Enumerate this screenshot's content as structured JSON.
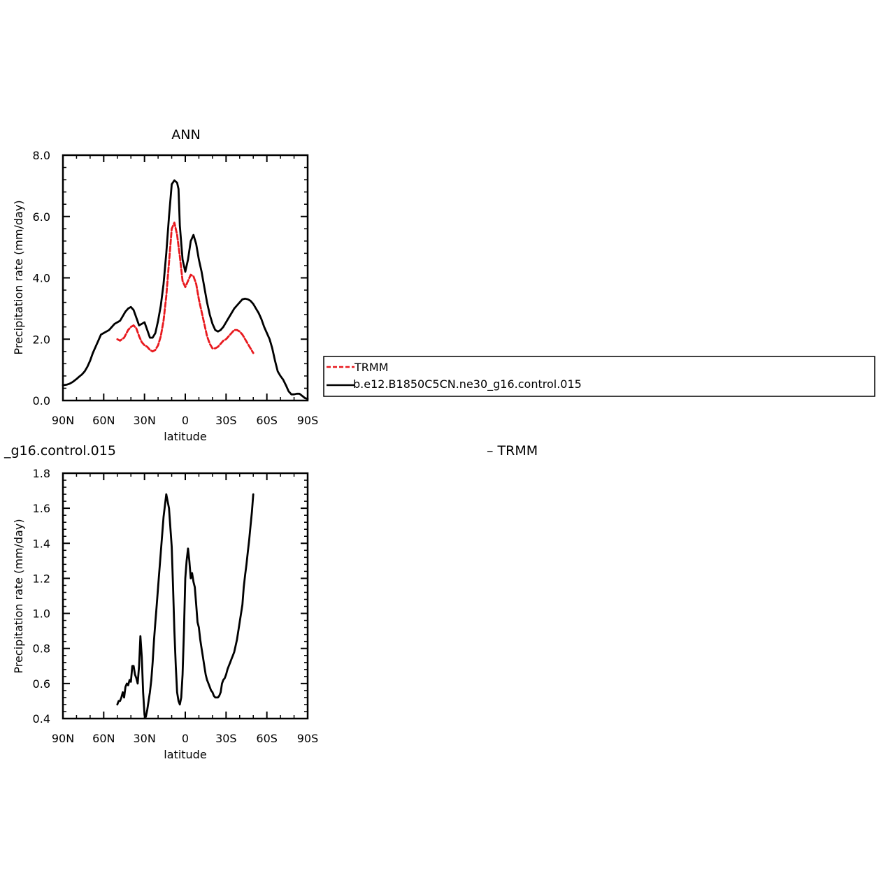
{
  "chart_data": [
    {
      "type": "line",
      "title": "ANN",
      "xlabel": "latitude",
      "ylabel": "Precipitation rate (mm/day)",
      "xlim": [
        90,
        -90
      ],
      "ylim": [
        0.0,
        8.0
      ],
      "xticks": [
        90,
        60,
        30,
        0,
        -30,
        -60,
        -90
      ],
      "xtick_labels": [
        "90N",
        "60N",
        "30N",
        "0",
        "30S",
        "60S",
        "90S"
      ],
      "yticks": [
        0,
        2,
        4,
        6,
        8
      ],
      "ytick_labels": [
        "0.0",
        "2.0",
        "4.0",
        "6.0",
        "8.0"
      ],
      "grid": false,
      "legend_position": "right",
      "series": [
        {
          "name": "TRMM",
          "color": "#e8191e",
          "dash": "dashed",
          "x": [
            50,
            48,
            45,
            42,
            40,
            38,
            36,
            34,
            32,
            30,
            28,
            26,
            24,
            22,
            20,
            18,
            16,
            14,
            12,
            10,
            8,
            6,
            4,
            2,
            0,
            -2,
            -4,
            -6,
            -8,
            -10,
            -12,
            -14,
            -16,
            -18,
            -20,
            -22,
            -24,
            -26,
            -28,
            -30,
            -32,
            -34,
            -36,
            -38,
            -40,
            -42,
            -44,
            -46,
            -48,
            -50
          ],
          "y": [
            2.0,
            1.95,
            2.05,
            2.3,
            2.4,
            2.45,
            2.35,
            2.1,
            1.9,
            1.8,
            1.75,
            1.65,
            1.6,
            1.65,
            1.8,
            2.1,
            2.6,
            3.4,
            4.5,
            5.6,
            5.8,
            5.4,
            4.7,
            3.9,
            3.7,
            3.9,
            4.1,
            4.05,
            3.8,
            3.3,
            2.9,
            2.5,
            2.1,
            1.85,
            1.7,
            1.7,
            1.75,
            1.85,
            1.95,
            2.0,
            2.1,
            2.2,
            2.3,
            2.3,
            2.25,
            2.15,
            2.0,
            1.85,
            1.7,
            1.55
          ]
        },
        {
          "name": "b.e12.B1850C5CN.ne30_g16.control.015",
          "color": "#000000",
          "dash": "solid",
          "x": [
            90,
            87,
            85,
            83,
            80,
            78,
            76,
            74,
            72,
            70,
            68,
            66,
            64,
            62,
            60,
            58,
            56,
            54,
            52,
            50,
            48,
            46,
            44,
            42,
            40,
            38,
            36,
            34,
            32,
            30,
            28,
            26,
            24,
            22,
            20,
            18,
            16,
            14,
            12,
            10,
            8,
            6,
            5,
            4,
            2,
            0,
            -2,
            -4,
            -6,
            -8,
            -10,
            -12,
            -14,
            -16,
            -18,
            -20,
            -22,
            -24,
            -26,
            -28,
            -30,
            -32,
            -34,
            -36,
            -38,
            -40,
            -42,
            -44,
            -46,
            -48,
            -50,
            -52,
            -54,
            -56,
            -58,
            -60,
            -62,
            -64,
            -66,
            -68,
            -70,
            -72,
            -74,
            -76,
            -78,
            -80,
            -82,
            -84,
            -86,
            -88,
            -90
          ],
          "y": [
            0.5,
            0.52,
            0.55,
            0.6,
            0.7,
            0.78,
            0.85,
            0.95,
            1.1,
            1.3,
            1.55,
            1.75,
            1.95,
            2.15,
            2.2,
            2.25,
            2.3,
            2.4,
            2.5,
            2.55,
            2.6,
            2.75,
            2.9,
            3.0,
            3.05,
            2.95,
            2.7,
            2.45,
            2.5,
            2.55,
            2.3,
            2.05,
            2.05,
            2.2,
            2.6,
            3.1,
            3.8,
            4.8,
            6.0,
            7.05,
            7.18,
            7.1,
            6.9,
            5.7,
            4.6,
            4.2,
            4.6,
            5.2,
            5.4,
            5.1,
            4.6,
            4.2,
            3.7,
            3.2,
            2.8,
            2.5,
            2.3,
            2.25,
            2.3,
            2.4,
            2.55,
            2.7,
            2.85,
            3.0,
            3.1,
            3.2,
            3.3,
            3.32,
            3.3,
            3.25,
            3.15,
            3.0,
            2.85,
            2.65,
            2.4,
            2.2,
            2.0,
            1.7,
            1.3,
            0.95,
            0.8,
            0.68,
            0.5,
            0.3,
            0.2,
            0.2,
            0.22,
            0.22,
            0.15,
            0.08,
            0.05
          ]
        }
      ]
    },
    {
      "type": "line",
      "title": "_g16.control.015",
      "title_right": "– TRMM",
      "xlabel": "latitude",
      "ylabel": "Precipitation rate (mm/day)",
      "xlim": [
        90,
        -90
      ],
      "ylim": [
        0.4,
        1.8
      ],
      "xticks": [
        90,
        60,
        30,
        0,
        -30,
        -60,
        -90
      ],
      "xtick_labels": [
        "90N",
        "60N",
        "30N",
        "0",
        "30S",
        "60S",
        "90S"
      ],
      "yticks": [
        0.4,
        0.6,
        0.8,
        1.0,
        1.2,
        1.4,
        1.6,
        1.8
      ],
      "ytick_labels": [
        "0.4",
        "0.6",
        "0.8",
        "1.0",
        "1.2",
        "1.4",
        "1.6",
        "1.8"
      ],
      "grid": false,
      "series": [
        {
          "color": "#000000",
          "dash": "solid",
          "x": [
            50,
            49,
            48,
            47,
            46,
            45,
            44,
            43,
            42,
            41,
            40,
            39,
            38,
            37,
            36,
            35,
            34,
            33,
            32,
            31,
            30,
            29,
            28,
            27,
            26,
            25,
            24,
            23,
            22,
            21,
            20,
            18,
            16,
            14,
            12,
            10,
            9,
            8,
            7,
            6,
            5,
            4,
            3,
            2,
            1,
            0,
            -1,
            -2,
            -3,
            -4,
            -5,
            -6,
            -7,
            -8,
            -9,
            -10,
            -11,
            -12,
            -13,
            -14,
            -15,
            -16,
            -17,
            -18,
            -19,
            -20,
            -21,
            -22,
            -23,
            -24,
            -25,
            -26,
            -27,
            -28,
            -29,
            -30,
            -31,
            -32,
            -33,
            -34,
            -35,
            -36,
            -38,
            -40,
            -42,
            -43,
            -44,
            -45,
            -46,
            -47,
            -48,
            -49,
            -50
          ],
          "y": [
            0.48,
            0.5,
            0.5,
            0.52,
            0.55,
            0.52,
            0.58,
            0.6,
            0.59,
            0.62,
            0.61,
            0.7,
            0.7,
            0.65,
            0.63,
            0.6,
            0.7,
            0.87,
            0.75,
            0.55,
            0.42,
            0.41,
            0.45,
            0.5,
            0.55,
            0.62,
            0.72,
            0.85,
            0.95,
            1.05,
            1.15,
            1.35,
            1.55,
            1.68,
            1.6,
            1.38,
            1.15,
            0.9,
            0.7,
            0.55,
            0.5,
            0.48,
            0.52,
            0.65,
            0.9,
            1.2,
            1.3,
            1.37,
            1.3,
            1.2,
            1.23,
            1.18,
            1.15,
            1.05,
            0.95,
            0.92,
            0.85,
            0.8,
            0.75,
            0.7,
            0.65,
            0.62,
            0.6,
            0.58,
            0.56,
            0.55,
            0.53,
            0.52,
            0.52,
            0.52,
            0.53,
            0.55,
            0.6,
            0.62,
            0.63,
            0.65,
            0.68,
            0.7,
            0.72,
            0.74,
            0.76,
            0.78,
            0.85,
            0.95,
            1.05,
            1.15,
            1.22,
            1.28,
            1.35,
            1.42,
            1.5,
            1.58,
            1.68
          ]
        }
      ]
    }
  ],
  "legend": {
    "items": [
      {
        "label": "TRMM",
        "color": "#e8191e",
        "dash": "dashed"
      },
      {
        "label": "b.e12.B1850C5CN.ne30_g16.control.015",
        "color": "#000000",
        "dash": "solid"
      }
    ]
  }
}
